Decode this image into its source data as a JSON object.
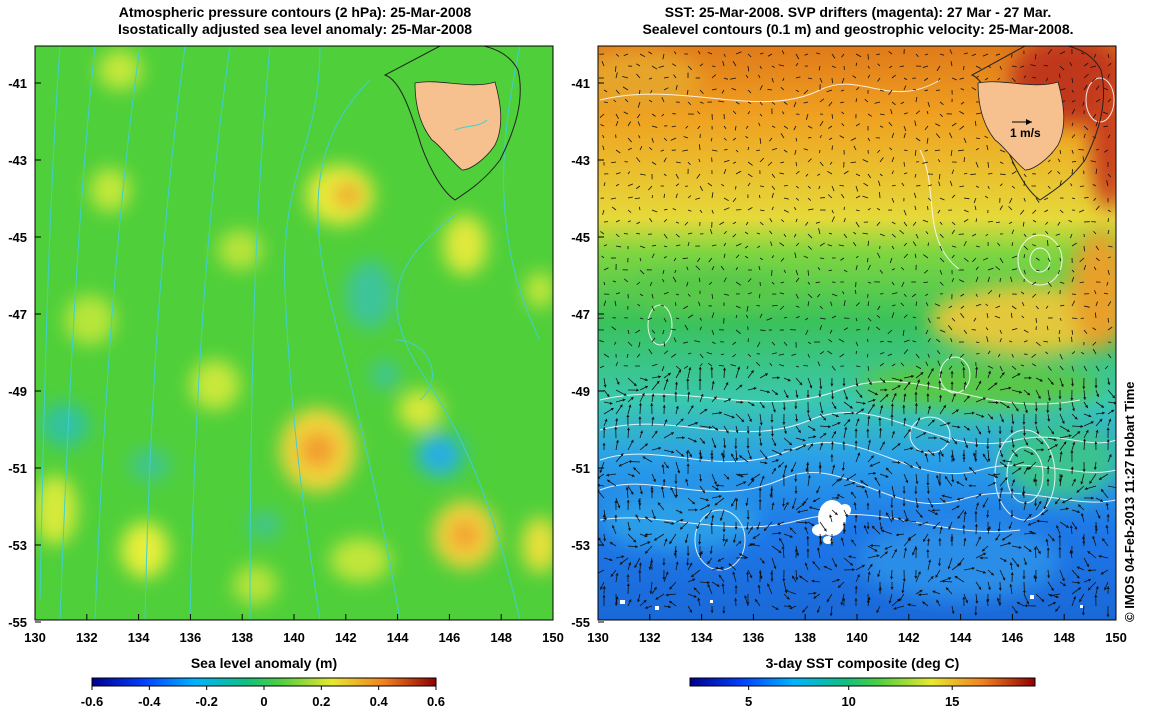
{
  "left_panel": {
    "title_line1": "Atmospheric pressure contours (2 hPa): 25-Mar-2008",
    "title_line2": "Isostatically adjusted sea level anomaly: 25-Mar-2008",
    "colorbar_title": "Sea level anomaly (m)",
    "colorbar_ticks": [
      "-0.6",
      "-0.4",
      "-0.2",
      "0",
      "0.2",
      "0.4",
      "0.6"
    ]
  },
  "right_panel": {
    "title_line1": "SST: 25-Mar-2008. SVP drifters (magenta): 27 Mar - 27 Mar.",
    "title_line2": "Sealevel contours (0.1 m) and geostrophic velocity: 25-Mar-2008.",
    "colorbar_title": "3-day SST composite (deg C)",
    "colorbar_ticks": [
      "5",
      "10",
      "15"
    ],
    "velocity_scale_label": "1 m/s"
  },
  "axes": {
    "lat_ticks": [
      "-41",
      "-43",
      "-45",
      "-47",
      "-49",
      "-51",
      "-53",
      "-55"
    ],
    "lon_ticks": [
      "130",
      "132",
      "134",
      "136",
      "138",
      "140",
      "142",
      "144",
      "146",
      "148",
      "150"
    ]
  },
  "credit": "© IMOS 04-Feb-2013 11:27 Hobart Time",
  "colors": {
    "land": "#f7c08f",
    "pressure_contour": "#3fd0d0",
    "sst_contour": "#ffffff"
  }
}
